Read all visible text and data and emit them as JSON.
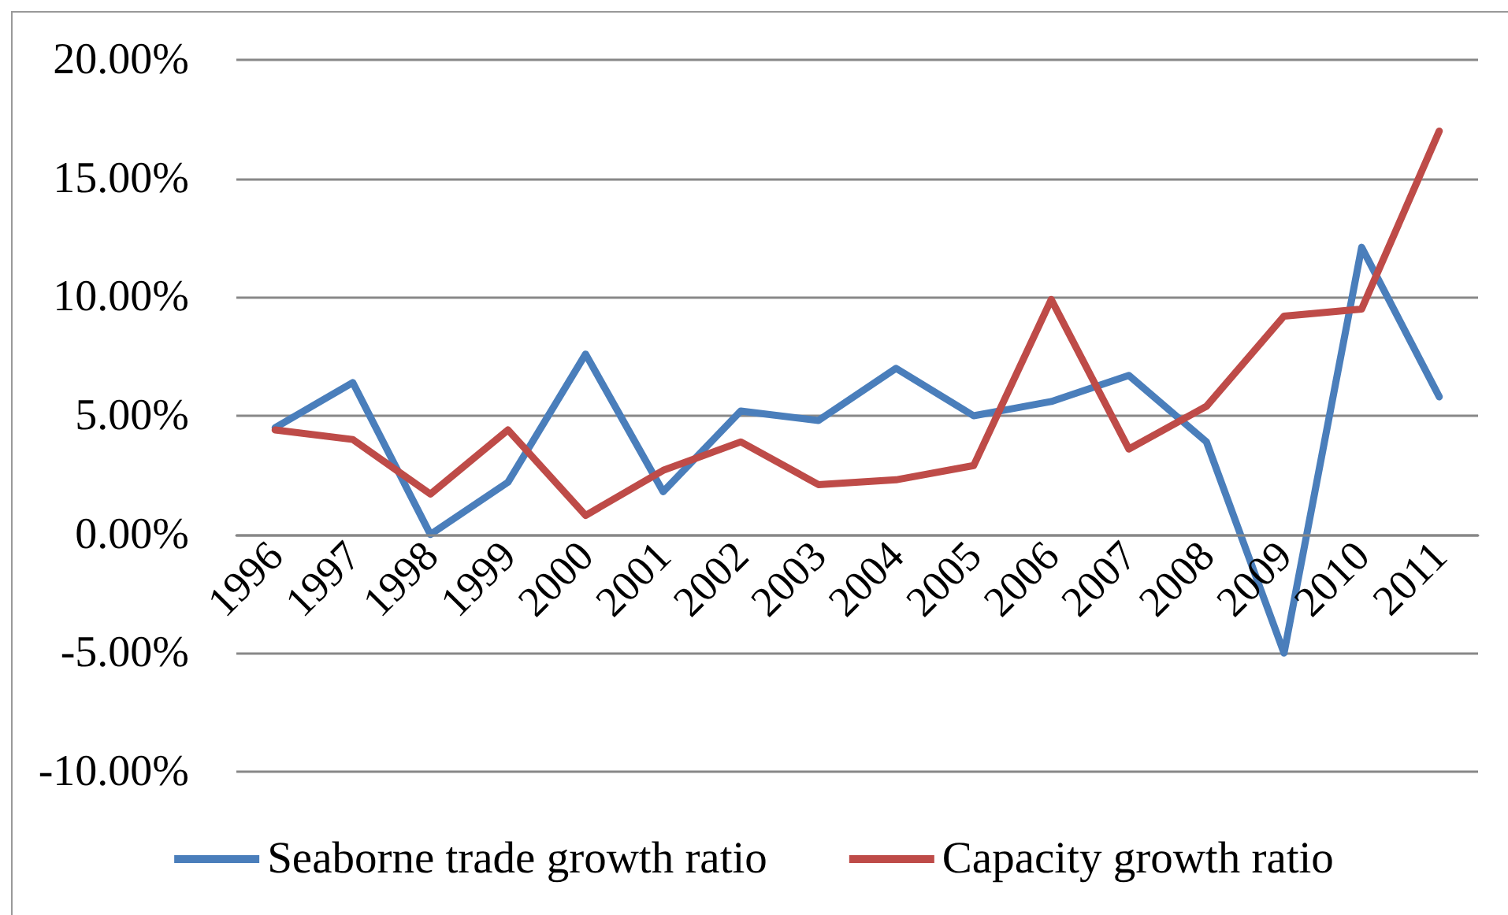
{
  "chart_data": {
    "type": "line",
    "categories": [
      "1996",
      "1997",
      "1998",
      "1999",
      "2000",
      "2001",
      "2002",
      "2003",
      "2004",
      "2005",
      "2006",
      "2007",
      "2008",
      "2009",
      "2010",
      "2011"
    ],
    "series": [
      {
        "name": "Seaborne trade growth ratio",
        "color": "#4a7ebb",
        "values": [
          4.5,
          6.4,
          0.0,
          2.2,
          7.6,
          1.8,
          5.2,
          4.8,
          7.0,
          5.0,
          5.6,
          6.7,
          3.9,
          -5.0,
          12.1,
          5.8
        ]
      },
      {
        "name": "Capacity growth ratio",
        "color": "#be4b48",
        "values": [
          4.4,
          4.0,
          1.7,
          4.4,
          0.8,
          2.7,
          3.9,
          2.1,
          2.3,
          2.9,
          9.9,
          3.6,
          5.4,
          9.2,
          9.5,
          17.0
        ]
      }
    ],
    "ylim": [
      -10,
      20
    ],
    "yticks": [
      {
        "value": -10,
        "label": "-10.00%"
      },
      {
        "value": -5,
        "label": "-5.00%"
      },
      {
        "value": 0,
        "label": "0.00%"
      },
      {
        "value": 5,
        "label": "5.00%"
      },
      {
        "value": 10,
        "label": "10.00%"
      },
      {
        "value": 15,
        "label": "15.00%"
      },
      {
        "value": 20,
        "label": "20.00%"
      }
    ],
    "grid": "y",
    "legend": "bottom",
    "marker": "none",
    "line_style": "solid"
  }
}
